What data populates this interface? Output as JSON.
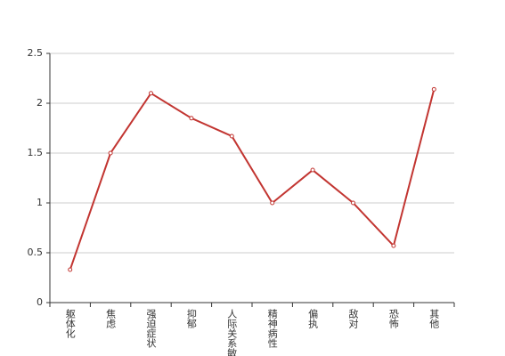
{
  "chart_data": {
    "type": "line",
    "categories": [
      "躯体化",
      "焦虑",
      "强迫症状",
      "抑郁",
      "人际关系敏感",
      "精神病性",
      "偏执",
      "敌对",
      "恐怖",
      "其他"
    ],
    "series": [
      {
        "color": "#c23531",
        "values": [
          0.33,
          1.5,
          2.1,
          1.85,
          1.67,
          1.0,
          1.33,
          1.0,
          0.57,
          2.14
        ]
      }
    ],
    "ylim": [
      0,
      2.5
    ],
    "yticks": [
      0,
      0.5,
      1,
      1.5,
      2,
      2.5
    ],
    "grid": true
  }
}
